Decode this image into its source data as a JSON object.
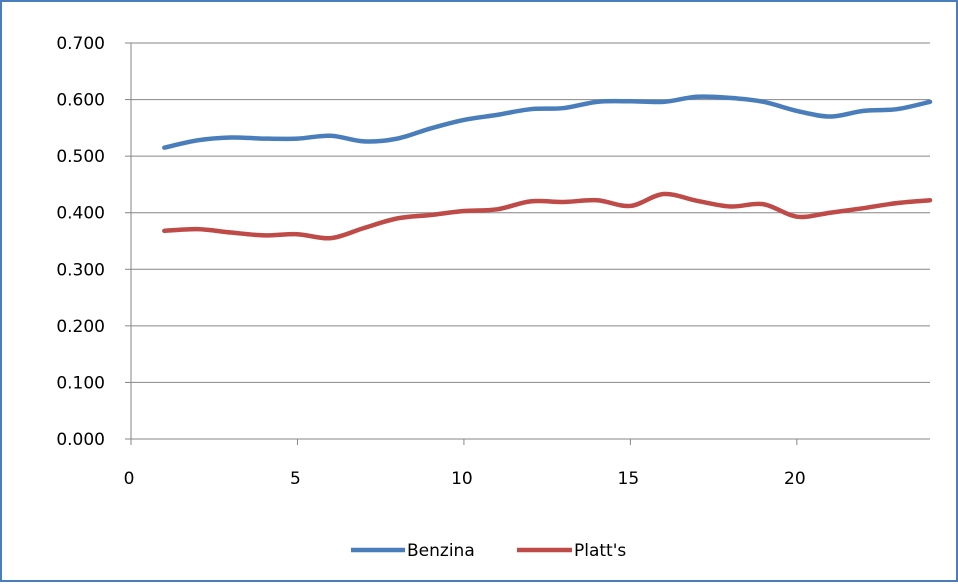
{
  "chart_data": {
    "type": "line",
    "title": "",
    "xlabel": "",
    "ylabel": "",
    "x": [
      1,
      2,
      3,
      4,
      5,
      6,
      7,
      8,
      9,
      10,
      11,
      12,
      13,
      14,
      15,
      16,
      17,
      18,
      19,
      20,
      21,
      22,
      23,
      24
    ],
    "series": [
      {
        "name": "Benzina",
        "color": "#4a7ebb",
        "values": [
          0.515,
          0.528,
          0.533,
          0.531,
          0.531,
          0.536,
          0.526,
          0.531,
          0.549,
          0.564,
          0.573,
          0.583,
          0.585,
          0.596,
          0.597,
          0.596,
          0.605,
          0.603,
          0.596,
          0.58,
          0.57,
          0.58,
          0.583,
          0.596
        ]
      },
      {
        "name": "Platt's",
        "color": "#be4b48",
        "values": [
          0.368,
          0.371,
          0.365,
          0.36,
          0.362,
          0.355,
          0.373,
          0.39,
          0.396,
          0.403,
          0.406,
          0.42,
          0.419,
          0.422,
          0.412,
          0.433,
          0.421,
          0.411,
          0.415,
          0.393,
          0.4,
          0.408,
          0.417,
          0.422
        ]
      }
    ],
    "xlim": [
      0,
      24
    ],
    "ylim": [
      0,
      0.7
    ],
    "x_ticks": [
      "0",
      "5",
      "10",
      "15",
      "20"
    ],
    "x_tick_values": [
      0,
      5,
      10,
      15,
      20
    ],
    "y_ticks": [
      "0.000",
      "0.100",
      "0.200",
      "0.300",
      "0.400",
      "0.500",
      "0.600",
      "0.700"
    ],
    "y_tick_values": [
      0,
      0.1,
      0.2,
      0.3,
      0.4,
      0.5,
      0.6,
      0.7
    ],
    "grid": true,
    "legend_position": "bottom"
  }
}
